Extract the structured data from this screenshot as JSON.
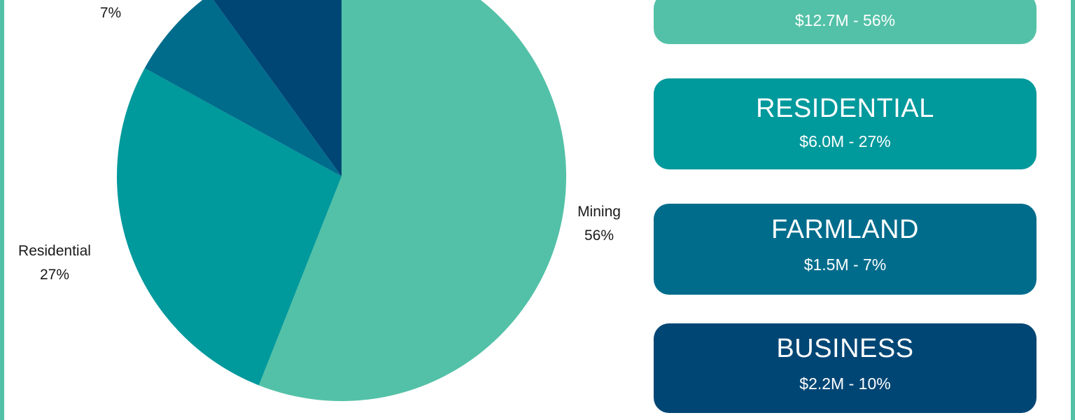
{
  "chart_data": {
    "type": "pie",
    "slices": [
      {
        "label": "Mining",
        "percent_label": "56%",
        "value": 56,
        "color": "#53c1a7"
      },
      {
        "label": "Residential",
        "percent_label": "27%",
        "value": 27,
        "color": "#00999c"
      },
      {
        "label": "Farmland",
        "percent_label": "7%",
        "value": 7,
        "color": "#006c8c"
      },
      {
        "label": "Business",
        "percent_label": "10%",
        "value": 10,
        "color": "#004674"
      }
    ],
    "start_angle_deg": 0,
    "direction": "clockwise"
  },
  "labels": {
    "mining": {
      "name": "Mining",
      "pct": "56%"
    },
    "residential": {
      "name": "Residential",
      "pct": "27%"
    },
    "farmland": {
      "pct": "7%"
    }
  },
  "cards": {
    "mining": {
      "value": "$12.7M - 56%",
      "color": "#53c1a7"
    },
    "residential": {
      "title": "RESIDENTIAL",
      "value": "$6.0M - 27%",
      "color": "#00999c"
    },
    "farmland": {
      "title": "FARMLAND",
      "value": "$1.5M - 7%",
      "color": "#006c8c"
    },
    "business": {
      "title": "BUSINESS",
      "value": "$2.2M - 10%",
      "color": "#004674"
    }
  },
  "frame_color": "#53c1a7"
}
